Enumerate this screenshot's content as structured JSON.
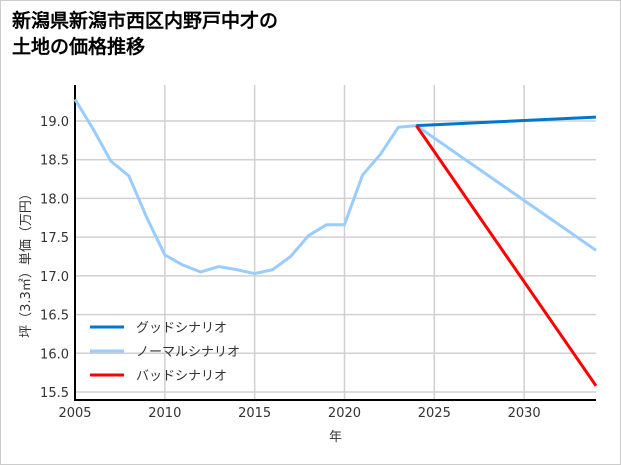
{
  "chart_data": {
    "type": "line",
    "title_lines": [
      "新潟県新潟市西区内野戸中才の",
      "土地の価格推移"
    ],
    "xlabel": "年",
    "ylabel": "坪（3.3㎡）単価（万円）",
    "xlim": [
      2005,
      2034
    ],
    "ylim": [
      15.4,
      19.5
    ],
    "xticks": [
      2005,
      2010,
      2015,
      2020,
      2025,
      2030
    ],
    "yticks": [
      15.5,
      16.0,
      16.5,
      17.0,
      17.5,
      18.0,
      18.5,
      19.0
    ],
    "grid": true,
    "legend_position": "bottom-left",
    "series": [
      {
        "name": "グッドシナリオ",
        "color": "#0077cc",
        "x": [
          2024,
          2034
        ],
        "y": [
          18.94,
          19.05
        ]
      },
      {
        "name": "ノーマルシナリオ",
        "color": "#99ccff",
        "x": [
          2005,
          2006,
          2007,
          2008,
          2009,
          2010,
          2011,
          2012,
          2013,
          2014,
          2015,
          2016,
          2017,
          2018,
          2019,
          2020,
          2021,
          2022,
          2023,
          2024,
          2034
        ],
        "y": [
          19.28,
          18.9,
          18.48,
          18.29,
          17.75,
          17.27,
          17.14,
          17.05,
          17.12,
          17.08,
          17.03,
          17.08,
          17.25,
          17.52,
          17.66,
          17.66,
          18.3,
          18.57,
          18.92,
          18.94,
          17.33
        ]
      },
      {
        "name": "バッドシナリオ",
        "color": "#ff0000",
        "x": [
          2024,
          2034
        ],
        "y": [
          18.94,
          15.58
        ]
      }
    ]
  }
}
